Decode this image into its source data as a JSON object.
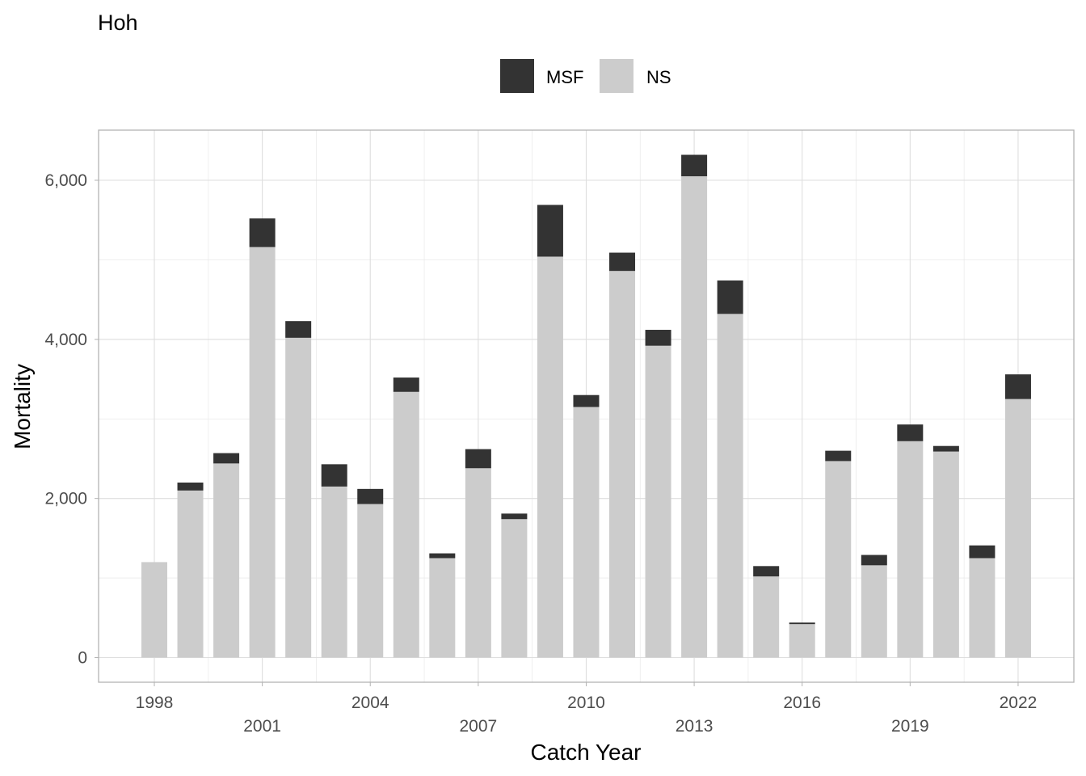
{
  "chart_data": {
    "type": "bar",
    "stacked": true,
    "title": "Hoh",
    "xlabel": "Catch Year",
    "ylabel": "Mortality",
    "categories": [
      "1998",
      "1999",
      "2000",
      "2001",
      "2002",
      "2003",
      "2004",
      "2005",
      "2006",
      "2007",
      "2008",
      "2009",
      "2010",
      "2011",
      "2012",
      "2013",
      "2014",
      "2015",
      "2016",
      "2017",
      "2018",
      "2019",
      "2020",
      "2021",
      "2022"
    ],
    "series": [
      {
        "name": "NS",
        "color": "#cccccc",
        "values": [
          1200,
          2100,
          2440,
          5160,
          4020,
          2150,
          1930,
          3340,
          1250,
          2380,
          1740,
          5040,
          3150,
          4860,
          3920,
          6050,
          4320,
          1020,
          420,
          2470,
          1160,
          2720,
          2590,
          1250,
          3250
        ]
      },
      {
        "name": "MSF",
        "color": "#333333",
        "values": [
          0,
          100,
          130,
          360,
          210,
          280,
          190,
          180,
          60,
          240,
          70,
          650,
          150,
          230,
          200,
          270,
          420,
          130,
          20,
          130,
          130,
          210,
          70,
          160,
          310
        ]
      }
    ],
    "legend_order": [
      "MSF",
      "NS"
    ],
    "x_tick_labels_row1": [
      "1998",
      "2004",
      "2010",
      "2016",
      "2022"
    ],
    "x_tick_labels_row2": [
      "2001",
      "2007",
      "2013",
      "2019"
    ],
    "y_ticks": [
      0,
      2000,
      4000,
      6000
    ],
    "y_tick_labels": [
      "0",
      "2,000",
      "4,000",
      "6,000"
    ],
    "ylim": [
      -310,
      6630
    ],
    "grid": true,
    "legend_position": "top"
  }
}
